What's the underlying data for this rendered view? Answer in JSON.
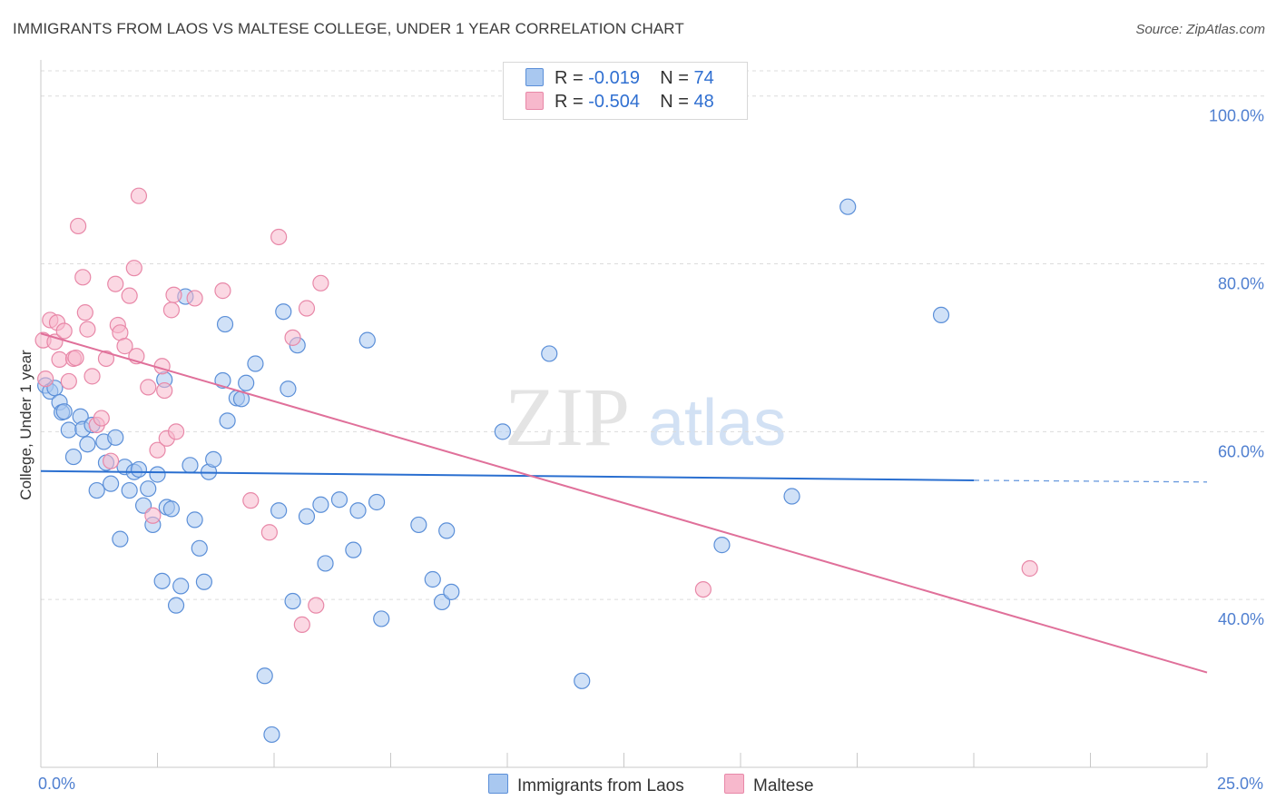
{
  "header": {
    "title": "IMMIGRANTS FROM LAOS VS MALTESE COLLEGE, UNDER 1 YEAR CORRELATION CHART",
    "source": "Source: ZipAtlas.com"
  },
  "legend": {
    "rows": [
      {
        "r_label": "R = ",
        "r_value": "-0.019",
        "n_label": "N = ",
        "n_value": "74"
      },
      {
        "r_label": "R = ",
        "r_value": "-0.504",
        "n_label": "N = ",
        "n_value": "48"
      }
    ]
  },
  "watermark": {
    "zip": "ZIP",
    "atlas": "atlas"
  },
  "colors": {
    "laos_fill": "#a9c8f0",
    "laos_stroke": "#5b8fd8",
    "laos_line": "#2a6fd0",
    "maltese_fill": "#f7b8cc",
    "maltese_stroke": "#e888a8",
    "maltese_line": "#e0709a",
    "grid": "#dcdcdc",
    "tick_text": "#4f7fd0"
  },
  "chart_data": {
    "type": "scatter",
    "title": "IMMIGRANTS FROM LAOS VS MALTESE COLLEGE, UNDER 1 YEAR CORRELATION CHART",
    "xlabel": "",
    "ylabel": "College, Under 1 year",
    "xlim": [
      0,
      25
    ],
    "ylim": [
      20,
      103
    ],
    "x_tick_labels": [
      {
        "value": 0,
        "label": "0.0%"
      },
      {
        "value": 25,
        "label": "25.0%"
      }
    ],
    "y_tick_labels": [
      {
        "value": 40,
        "label": "40.0%"
      },
      {
        "value": 60,
        "label": "60.0%"
      },
      {
        "value": 80,
        "label": "80.0%"
      },
      {
        "value": 100,
        "label": "100.0%"
      }
    ],
    "series": [
      {
        "name": "Immigrants from Laos",
        "color": "#5b8fd8",
        "trend": {
          "x": [
            0,
            20
          ],
          "y": [
            55.3,
            54.2
          ],
          "dashed_to": [
            25,
            54.0
          ]
        },
        "points": [
          [
            0.1,
            65.5
          ],
          [
            0.2,
            64.8
          ],
          [
            0.3,
            65.2
          ],
          [
            0.4,
            63.5
          ],
          [
            0.45,
            62.3
          ],
          [
            0.5,
            62.4
          ],
          [
            0.6,
            60.2
          ],
          [
            0.7,
            57.0
          ],
          [
            0.85,
            61.8
          ],
          [
            0.9,
            60.3
          ],
          [
            1.0,
            58.5
          ],
          [
            1.1,
            60.8
          ],
          [
            1.2,
            53.0
          ],
          [
            1.35,
            58.8
          ],
          [
            1.4,
            56.3
          ],
          [
            1.5,
            53.8
          ],
          [
            1.6,
            59.3
          ],
          [
            1.7,
            47.2
          ],
          [
            1.8,
            55.8
          ],
          [
            1.9,
            53.0
          ],
          [
            2.0,
            55.2
          ],
          [
            2.1,
            55.5
          ],
          [
            2.2,
            51.2
          ],
          [
            2.3,
            53.2
          ],
          [
            2.4,
            48.9
          ],
          [
            2.5,
            54.9
          ],
          [
            2.6,
            42.2
          ],
          [
            2.65,
            66.2
          ],
          [
            2.7,
            51.0
          ],
          [
            2.8,
            50.8
          ],
          [
            2.9,
            39.3
          ],
          [
            3.0,
            41.6
          ],
          [
            3.1,
            76.1
          ],
          [
            3.2,
            56.0
          ],
          [
            3.3,
            49.5
          ],
          [
            3.4,
            46.1
          ],
          [
            3.5,
            42.1
          ],
          [
            3.6,
            55.2
          ],
          [
            3.7,
            56.7
          ],
          [
            3.9,
            66.1
          ],
          [
            3.95,
            72.8
          ],
          [
            4.0,
            61.3
          ],
          [
            4.2,
            64.0
          ],
          [
            4.3,
            63.9
          ],
          [
            4.4,
            65.8
          ],
          [
            4.6,
            68.1
          ],
          [
            4.8,
            30.9
          ],
          [
            4.95,
            23.9
          ],
          [
            5.1,
            50.6
          ],
          [
            5.2,
            74.3
          ],
          [
            5.3,
            65.1
          ],
          [
            5.4,
            39.8
          ],
          [
            5.5,
            70.3
          ],
          [
            5.7,
            49.9
          ],
          [
            6.0,
            51.3
          ],
          [
            6.1,
            44.3
          ],
          [
            6.4,
            51.9
          ],
          [
            6.7,
            45.9
          ],
          [
            6.8,
            50.6
          ],
          [
            7.0,
            70.9
          ],
          [
            7.2,
            51.6
          ],
          [
            7.3,
            37.7
          ],
          [
            8.1,
            48.9
          ],
          [
            8.4,
            42.4
          ],
          [
            8.6,
            39.7
          ],
          [
            8.7,
            48.2
          ],
          [
            8.8,
            40.9
          ],
          [
            9.9,
            60.0
          ],
          [
            10.9,
            69.3
          ],
          [
            11.6,
            30.3
          ],
          [
            14.6,
            46.5
          ],
          [
            16.1,
            52.3
          ],
          [
            17.3,
            86.8
          ],
          [
            19.3,
            73.9
          ]
        ]
      },
      {
        "name": "Maltese",
        "color": "#e888a8",
        "trend": {
          "x": [
            0,
            25
          ],
          "y": [
            71.7,
            31.3
          ]
        },
        "points": [
          [
            0.05,
            70.9
          ],
          [
            0.1,
            66.3
          ],
          [
            0.2,
            73.3
          ],
          [
            0.3,
            70.7
          ],
          [
            0.35,
            73.0
          ],
          [
            0.4,
            68.6
          ],
          [
            0.5,
            72.0
          ],
          [
            0.6,
            66.0
          ],
          [
            0.7,
            68.7
          ],
          [
            0.75,
            68.8
          ],
          [
            0.8,
            84.5
          ],
          [
            0.9,
            78.4
          ],
          [
            0.95,
            74.2
          ],
          [
            1.0,
            72.2
          ],
          [
            1.1,
            66.6
          ],
          [
            1.2,
            60.8
          ],
          [
            1.3,
            61.6
          ],
          [
            1.4,
            68.7
          ],
          [
            1.5,
            56.5
          ],
          [
            1.6,
            77.6
          ],
          [
            1.65,
            72.7
          ],
          [
            1.7,
            71.8
          ],
          [
            1.8,
            70.2
          ],
          [
            1.9,
            76.2
          ],
          [
            2.0,
            79.5
          ],
          [
            2.05,
            69.0
          ],
          [
            2.1,
            88.1
          ],
          [
            2.3,
            65.3
          ],
          [
            2.4,
            50.0
          ],
          [
            2.5,
            57.8
          ],
          [
            2.6,
            67.8
          ],
          [
            2.65,
            64.9
          ],
          [
            2.7,
            59.2
          ],
          [
            2.8,
            74.5
          ],
          [
            2.85,
            76.3
          ],
          [
            2.9,
            60.0
          ],
          [
            3.3,
            75.9
          ],
          [
            3.9,
            76.8
          ],
          [
            4.5,
            51.8
          ],
          [
            4.9,
            48.0
          ],
          [
            5.1,
            83.2
          ],
          [
            5.4,
            71.2
          ],
          [
            5.7,
            74.7
          ],
          [
            5.6,
            37.0
          ],
          [
            5.9,
            39.3
          ],
          [
            6.0,
            77.7
          ],
          [
            14.2,
            41.2
          ],
          [
            21.2,
            43.7
          ]
        ]
      }
    ],
    "legend_position": "top-center"
  },
  "bottom_legend": {
    "items": [
      {
        "label": "Immigrants from Laos"
      },
      {
        "label": "Maltese"
      }
    ]
  }
}
